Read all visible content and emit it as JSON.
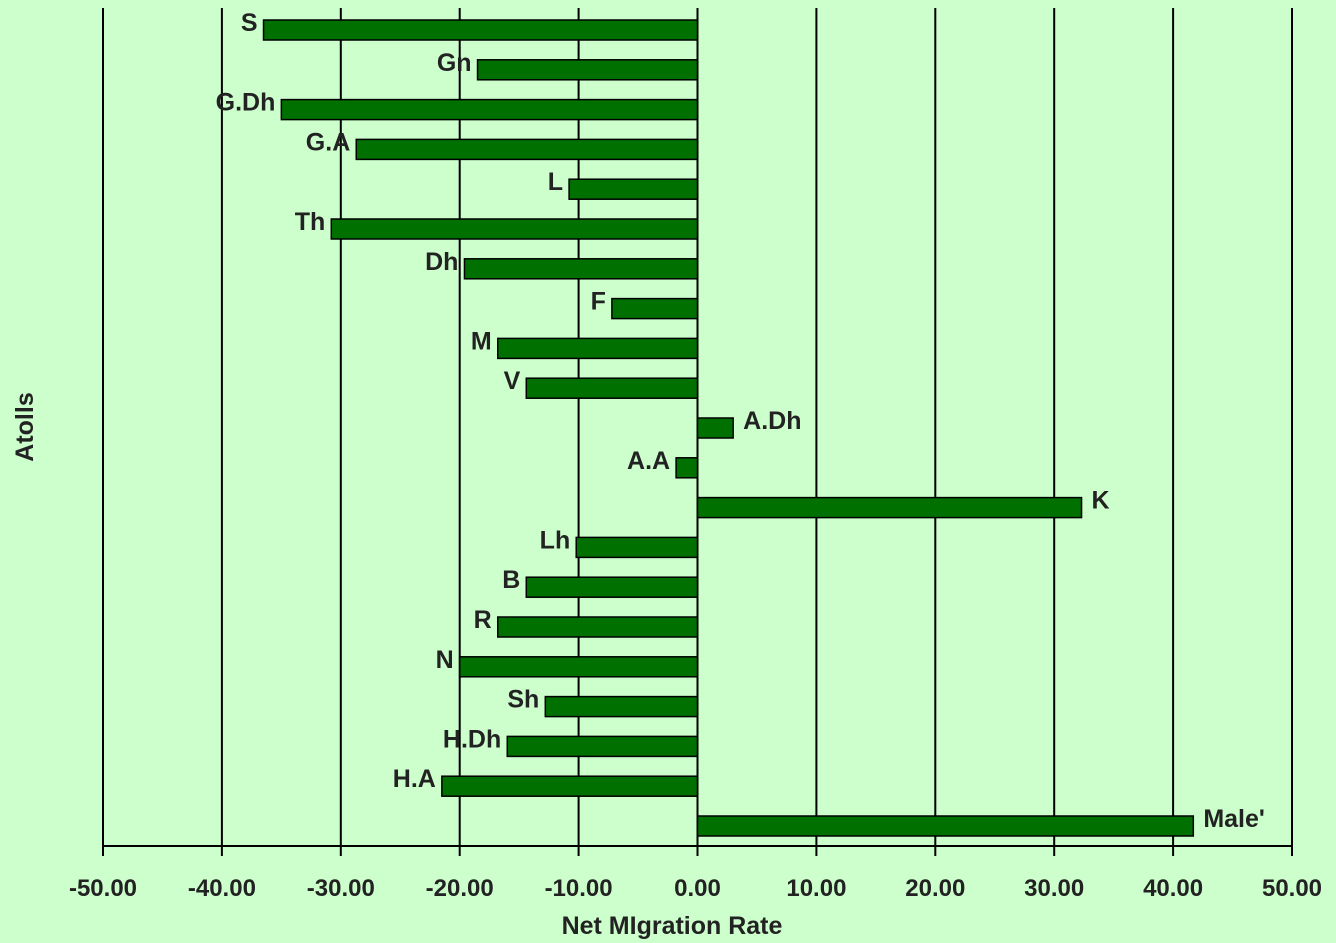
{
  "chart_data": {
    "type": "bar",
    "orientation": "horizontal",
    "title": "",
    "xlabel": "Net MIgration Rate",
    "ylabel": "Atolls",
    "xlim": [
      -50,
      50
    ],
    "xticks": [
      "-50.00",
      "-40.00",
      "-30.00",
      "-20.00",
      "-10.00",
      "0.00",
      "10.00",
      "20.00",
      "30.00",
      "40.00",
      "50.00"
    ],
    "grid": "vertical",
    "bar_color": "#007000",
    "background": "#ccffcc",
    "categories": [
      "S",
      "Gn",
      "G.Dh",
      "G.A",
      "L",
      "Th",
      "Dh",
      "F",
      "M",
      "V",
      "A.Dh",
      "A.A",
      "K",
      "Lh",
      "B",
      "R",
      "N",
      "Sh",
      "H.Dh",
      "H.A",
      "Male'"
    ],
    "values": [
      -36.5,
      -18.5,
      -35.0,
      -28.7,
      -10.8,
      -30.8,
      -19.6,
      -7.2,
      -16.8,
      -14.4,
      3.0,
      -1.8,
      32.3,
      -10.2,
      -14.4,
      -16.8,
      -20.0,
      -12.8,
      -16.0,
      -21.5,
      41.7
    ]
  }
}
